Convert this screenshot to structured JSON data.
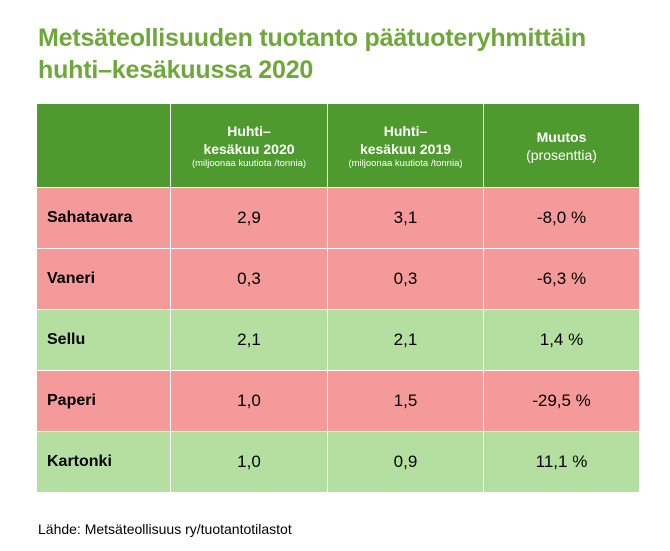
{
  "title_lines": [
    "Metsäteollisuuden tuotanto päätuoteryhmittäin",
    "huhti–kesäkuussa 2020"
  ],
  "table": {
    "headers": [
      {
        "main": "",
        "unit": ""
      },
      {
        "main": "Huhti–\nkesäkuu 2020",
        "unit": "(miljoonaa kuutiota /tonnia)"
      },
      {
        "main": "Huhti–\nkesäkuu 2019",
        "unit": "(miljoonaa kuutiota /tonnia)"
      },
      {
        "main": "Muutos",
        "unit": "(prosenttia)"
      }
    ],
    "rows": [
      {
        "name": "Sahatavara",
        "v2020": "2,9",
        "v2019": "3,1",
        "change": "-8,0 %"
      },
      {
        "name": "Vaneri",
        "v2020": "0,3",
        "v2019": "0,3",
        "change": "-6,3 %"
      },
      {
        "name": "Sellu",
        "v2020": "2,1",
        "v2019": "2,1",
        "change": "1,4 %"
      },
      {
        "name": "Paperi",
        "v2020": "1,0",
        "v2019": "1,5",
        "change": "-29,5 %"
      },
      {
        "name": "Kartonki",
        "v2020": "1,0",
        "v2019": "0,9",
        "change": "11,1 %"
      }
    ]
  },
  "colors": {
    "title": "#6ea83a",
    "header": "#4e9a2e",
    "decrease_row": "#f49a9a",
    "increase_row": "#b5dfa0"
  },
  "source": "Lähde: Metsäteollisuus ry/tuotantotilastot",
  "chart_data": {
    "type": "table",
    "title": "Metsäteollisuuden tuotanto päätuoteryhmittäin huhti–kesäkuussa 2020",
    "columns": [
      "Huhti–kesäkuu 2020 (miljoonaa kuutiota /tonnia)",
      "Huhti–kesäkuu 2019 (miljoonaa kuutiota /tonnia)",
      "Muutos (prosenttia)"
    ],
    "categories": [
      "Sahatavara",
      "Vaneri",
      "Sellu",
      "Paperi",
      "Kartonki"
    ],
    "series": [
      {
        "name": "Huhti–kesäkuu 2020",
        "values": [
          2.9,
          0.3,
          2.1,
          1.0,
          1.0
        ]
      },
      {
        "name": "Huhti–kesäkuu 2019",
        "values": [
          3.1,
          0.3,
          2.1,
          1.5,
          0.9
        ]
      },
      {
        "name": "Muutos",
        "values": [
          -8.0,
          -6.3,
          1.4,
          -29.5,
          11.1
        ]
      }
    ]
  }
}
